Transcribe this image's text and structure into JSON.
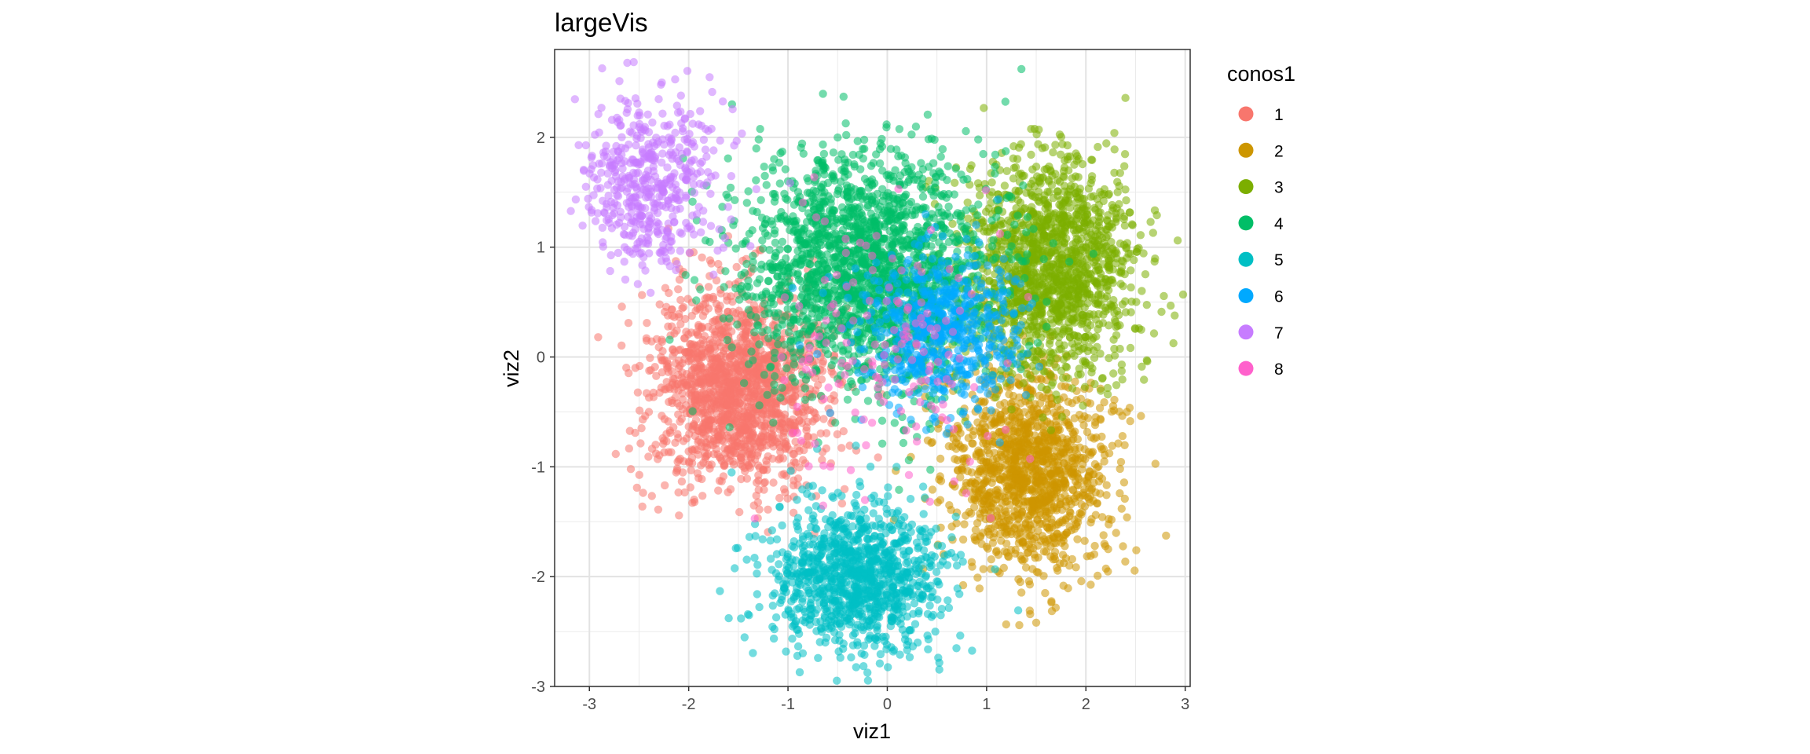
{
  "chart_data": {
    "type": "scatter",
    "title": "largeVis",
    "xlabel": "viz1",
    "ylabel": "viz2",
    "xlim": [
      -3.35,
      3.05
    ],
    "ylim": [
      -3.0,
      2.8
    ],
    "xticks": [
      -3,
      -2,
      -1,
      0,
      1,
      2,
      3
    ],
    "yticks": [
      -3,
      -2,
      -1,
      0,
      1,
      2
    ],
    "grid": true,
    "legend": {
      "title": "conos1",
      "position": "right",
      "entries": [
        {
          "label": "1",
          "color": "#F8766D"
        },
        {
          "label": "2",
          "color": "#CD9600"
        },
        {
          "label": "3",
          "color": "#7CAE00"
        },
        {
          "label": "4",
          "color": "#00BE67"
        },
        {
          "label": "5",
          "color": "#00BFC4"
        },
        {
          "label": "6",
          "color": "#00A9FF"
        },
        {
          "label": "7",
          "color": "#C77CFF"
        },
        {
          "label": "8",
          "color": "#FF61CC"
        }
      ]
    },
    "series": [
      {
        "name": "1",
        "color": "#F8766D",
        "n": 1600,
        "center": [
          -1.5,
          -0.3
        ],
        "spread": [
          0.45,
          0.45
        ]
      },
      {
        "name": "2",
        "color": "#CD9600",
        "n": 1300,
        "center": [
          1.45,
          -1.05
        ],
        "spread": [
          0.4,
          0.45
        ]
      },
      {
        "name": "3",
        "color": "#7CAE00",
        "n": 1500,
        "center": [
          1.65,
          0.8
        ],
        "spread": [
          0.45,
          0.5
        ]
      },
      {
        "name": "4",
        "color": "#00BE67",
        "n": 2000,
        "center": [
          -0.2,
          0.8
        ],
        "spread": [
          0.6,
          0.55
        ]
      },
      {
        "name": "5",
        "color": "#00BFC4",
        "n": 1100,
        "center": [
          -0.3,
          -2.0
        ],
        "spread": [
          0.45,
          0.35
        ]
      },
      {
        "name": "6",
        "color": "#00A9FF",
        "n": 600,
        "center": [
          0.55,
          0.25
        ],
        "spread": [
          0.4,
          0.35
        ]
      },
      {
        "name": "7",
        "color": "#C77CFF",
        "n": 500,
        "center": [
          -2.4,
          1.6
        ],
        "spread": [
          0.35,
          0.4
        ]
      },
      {
        "name": "8",
        "color": "#FF61CC",
        "n": 150,
        "center": [
          0.0,
          0.0
        ],
        "spread": [
          0.6,
          0.6
        ]
      }
    ]
  }
}
